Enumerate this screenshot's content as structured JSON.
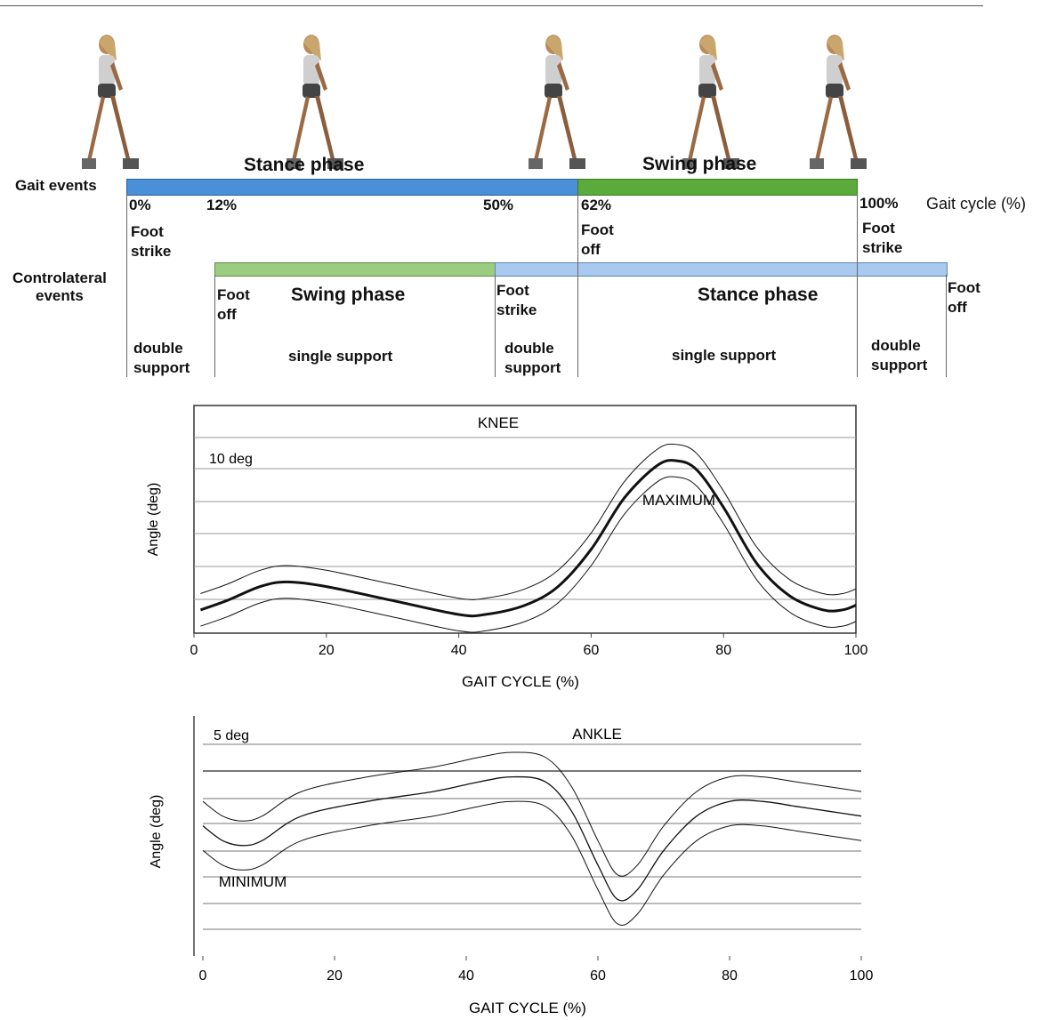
{
  "gait_section": {
    "gait_events_label": "Gait events",
    "contralateral_label_line1": "Controlateral",
    "contralateral_label_line2": "events",
    "gait_cycle_label": "Gait cycle (%)",
    "top_stance_label": "Stance phase",
    "top_swing_label": "Swing phase",
    "percent_ticks": [
      "0%",
      "12%",
      "50%",
      "62%",
      "100%"
    ],
    "top_events": {
      "foot_strike_0": [
        "Foot",
        "strike"
      ],
      "foot_off_62": [
        "Foot",
        "off"
      ],
      "foot_strike_100": [
        "Foot",
        "strike"
      ]
    },
    "contra_swing_label": "Swing phase",
    "contra_stance_label": "Stance phase",
    "contra_events": {
      "foot_off_12": [
        "Foot",
        "off"
      ],
      "foot_strike_50": [
        "Foot",
        "strike"
      ],
      "foot_off_100": [
        "Foot",
        "off"
      ]
    },
    "support_labels": {
      "double_1": [
        "double",
        "support"
      ],
      "single_1": "single support",
      "double_2": [
        "double",
        "support"
      ],
      "single_2": "single support",
      "double_3": [
        "double",
        "support"
      ]
    },
    "colors": {
      "stance_blue": "#4a90d9",
      "swing_green": "#5aaa3c",
      "contra_swing_green": "#9ccc7f",
      "contra_stance_blue": "#a9c9ee"
    }
  },
  "chart_data": [
    {
      "type": "line",
      "title": "KNEE",
      "scale_note": "10 deg",
      "annotation": "MAXIMUM",
      "xlabel": "GAIT CYCLE (%)",
      "ylabel": "Angle (deg)",
      "xlim": [
        0,
        100
      ],
      "xticks": [
        "0",
        "20",
        "40",
        "60",
        "80",
        "100"
      ],
      "x": [
        1,
        5,
        10,
        14,
        20,
        30,
        40,
        44,
        50,
        55,
        60,
        65,
        70,
        73,
        76,
        80,
        85,
        90,
        95,
        98,
        100
      ],
      "series": [
        {
          "values": [
            5,
            7,
            10,
            11,
            10,
            7,
            4,
            4,
            6,
            10,
            18,
            29,
            36,
            37,
            35,
            27,
            15,
            8,
            5,
            5,
            6
          ]
        },
        {
          "values": [
            8.5,
            10.5,
            13.5,
            14.5,
            13.5,
            10.5,
            7.5,
            7.5,
            9.5,
            13.5,
            21.5,
            32.5,
            39.5,
            40.5,
            38.5,
            30.5,
            18.5,
            11.5,
            8.5,
            8.5,
            9.5
          ]
        },
        {
          "values": [
            1.5,
            3.5,
            6.5,
            7.5,
            6.5,
            3.5,
            0.5,
            0.5,
            2.5,
            6.5,
            14.5,
            25.5,
            32.5,
            33.5,
            31.5,
            23.5,
            11.5,
            4.5,
            1.5,
            1.5,
            2.5
          ]
        }
      ]
    },
    {
      "type": "line",
      "title": "ANKLE",
      "scale_note": "5 deg",
      "annotation": "MINIMUM",
      "xlabel": "GAIT CYCLE (%)",
      "ylabel": "Angle (deg)",
      "xlim": [
        0,
        100
      ],
      "xticks": [
        "0",
        "20",
        "40",
        "60",
        "80",
        "100"
      ],
      "x": [
        0,
        3,
        6,
        9,
        15,
        25,
        35,
        42,
        47,
        52,
        56,
        60,
        63,
        66,
        70,
        75,
        80,
        85,
        90,
        95,
        100
      ],
      "series": [
        {
          "values": [
            1,
            -2,
            -3,
            -2,
            3,
            6,
            8,
            10,
            11,
            10,
            4,
            -7,
            -14,
            -12,
            -4,
            3,
            6,
            6,
            5,
            4,
            3
          ]
        },
        {
          "values": [
            6,
            3,
            2,
            3,
            8,
            11,
            13,
            15,
            16,
            15,
            9,
            -2,
            -9,
            -7,
            1,
            8,
            11,
            11,
            10,
            9,
            8
          ]
        },
        {
          "values": [
            -4,
            -7,
            -8,
            -7,
            -2,
            1,
            3,
            5,
            6,
            5,
            -1,
            -12,
            -19,
            -17,
            -9,
            -2,
            1,
            1,
            0,
            -1,
            -2
          ]
        }
      ]
    }
  ]
}
